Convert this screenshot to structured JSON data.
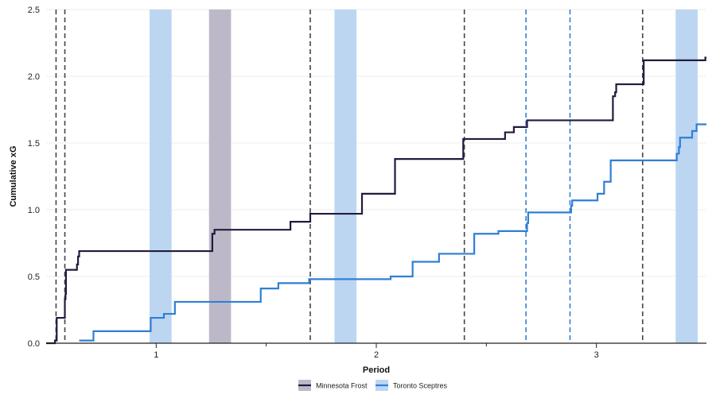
{
  "chart_data": {
    "type": "line",
    "xlabel": "Period",
    "ylabel": "Cumulative xG",
    "xlim": [
      0.5,
      3.5
    ],
    "ylim": [
      0,
      2.5
    ],
    "x_ticks": [
      1,
      2,
      3
    ],
    "y_ticks": [
      "0.0",
      "0.5",
      "1.0",
      "1.5",
      "2.0",
      "2.5"
    ],
    "grid": "horizontal",
    "legend_position": "bottom-center",
    "series": [
      {
        "name": "Minnesota Frost",
        "color": "#231a3d",
        "step_points": [
          [
            0.5,
            0.0
          ],
          [
            0.54,
            0.02
          ],
          [
            0.545,
            0.02
          ],
          [
            0.548,
            0.19
          ],
          [
            0.58,
            0.19
          ],
          [
            0.585,
            0.33
          ],
          [
            0.588,
            0.37
          ],
          [
            0.59,
            0.55
          ],
          [
            0.635,
            0.55
          ],
          [
            0.64,
            0.59
          ],
          [
            0.645,
            0.65
          ],
          [
            0.65,
            0.69
          ],
          [
            1.25,
            0.69
          ],
          [
            1.255,
            0.82
          ],
          [
            1.265,
            0.85
          ],
          [
            1.6,
            0.85
          ],
          [
            1.61,
            0.91
          ],
          [
            1.69,
            0.91
          ],
          [
            1.7,
            0.97
          ],
          [
            1.93,
            0.97
          ],
          [
            1.935,
            1.12
          ],
          [
            2.08,
            1.12
          ],
          [
            2.085,
            1.38
          ],
          [
            2.39,
            1.38
          ],
          [
            2.395,
            1.53
          ],
          [
            2.58,
            1.53
          ],
          [
            2.585,
            1.58
          ],
          [
            2.62,
            1.58
          ],
          [
            2.625,
            1.62
          ],
          [
            2.68,
            1.62
          ],
          [
            2.685,
            1.67
          ],
          [
            3.07,
            1.67
          ],
          [
            3.075,
            1.85
          ],
          [
            3.085,
            1.88
          ],
          [
            3.09,
            1.94
          ],
          [
            3.21,
            1.94
          ],
          [
            3.215,
            2.12
          ],
          [
            3.49,
            2.12
          ],
          [
            3.495,
            2.14
          ],
          [
            3.5,
            2.14
          ]
        ]
      },
      {
        "name": "Toronto Sceptres",
        "color": "#2f7fd6",
        "step_points": [
          [
            0.65,
            0.02
          ],
          [
            0.71,
            0.02
          ],
          [
            0.715,
            0.09
          ],
          [
            0.97,
            0.09
          ],
          [
            0.975,
            0.19
          ],
          [
            1.03,
            0.19
          ],
          [
            1.035,
            0.22
          ],
          [
            1.08,
            0.22
          ],
          [
            1.085,
            0.31
          ],
          [
            1.47,
            0.31
          ],
          [
            1.475,
            0.41
          ],
          [
            1.55,
            0.41
          ],
          [
            1.555,
            0.45
          ],
          [
            1.69,
            0.45
          ],
          [
            1.695,
            0.48
          ],
          [
            2.06,
            0.48
          ],
          [
            2.065,
            0.5
          ],
          [
            2.16,
            0.5
          ],
          [
            2.165,
            0.61
          ],
          [
            2.28,
            0.61
          ],
          [
            2.285,
            0.67
          ],
          [
            2.44,
            0.67
          ],
          [
            2.445,
            0.82
          ],
          [
            2.55,
            0.82
          ],
          [
            2.555,
            0.84
          ],
          [
            2.68,
            0.84
          ],
          [
            2.685,
            0.9
          ],
          [
            2.69,
            0.98
          ],
          [
            2.88,
            0.98
          ],
          [
            2.885,
            1.03
          ],
          [
            2.89,
            1.07
          ],
          [
            3.0,
            1.07
          ],
          [
            3.005,
            1.12
          ],
          [
            3.03,
            1.12
          ],
          [
            3.035,
            1.21
          ],
          [
            3.06,
            1.21
          ],
          [
            3.065,
            1.37
          ],
          [
            3.36,
            1.37
          ],
          [
            3.365,
            1.42
          ],
          [
            3.375,
            1.47
          ],
          [
            3.38,
            1.54
          ],
          [
            3.43,
            1.54
          ],
          [
            3.435,
            1.59
          ],
          [
            3.45,
            1.59
          ],
          [
            3.455,
            1.64
          ],
          [
            3.5,
            1.64
          ]
        ]
      }
    ],
    "goal_lines": [
      {
        "team": "Minnesota Frost",
        "x": 0.545,
        "color": "#444444"
      },
      {
        "team": "Minnesota Frost",
        "x": 0.585,
        "color": "#444444"
      },
      {
        "team": "Minnesota Frost",
        "x": 1.7,
        "color": "#444444"
      },
      {
        "team": "Minnesota Frost",
        "x": 2.4,
        "color": "#444444"
      },
      {
        "team": "Toronto Sceptres",
        "x": 2.68,
        "color": "#2f7fd6"
      },
      {
        "team": "Toronto Sceptres",
        "x": 2.88,
        "color": "#2f7fd6"
      },
      {
        "team": "Minnesota Frost",
        "x": 3.21,
        "color": "#444444"
      }
    ],
    "penalty_bands": [
      {
        "team": "Toronto Sceptres",
        "x_start": 0.97,
        "x_end": 1.07,
        "color": "#bcd6f2"
      },
      {
        "team": "Minnesota Frost",
        "x_start": 1.24,
        "x_end": 1.34,
        "color": "#bdb8c8"
      },
      {
        "team": "Toronto Sceptres",
        "x_start": 1.81,
        "x_end": 1.91,
        "color": "#bcd6f2"
      },
      {
        "team": "Toronto Sceptres",
        "x_start": 3.36,
        "x_end": 3.46,
        "color": "#bcd6f2"
      }
    ],
    "legend": [
      {
        "label": "Minnesota Frost",
        "swatch_color": "#bdb8c8",
        "line_color": "#231a3d"
      },
      {
        "label": "Toronto Sceptres",
        "swatch_color": "#bcd6f2",
        "line_color": "#2f7fd6"
      }
    ]
  }
}
